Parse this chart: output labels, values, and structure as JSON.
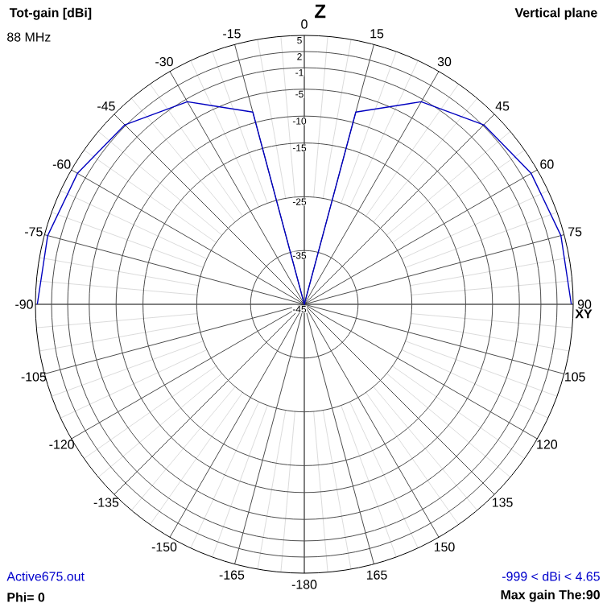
{
  "chart_data": {
    "type": "radar",
    "title": "Tot-gain [dBi]",
    "subtitle": "Vertical plane",
    "categories": [
      "0",
      "15",
      "30",
      "45",
      "60",
      "75",
      "90",
      "105",
      "120",
      "135",
      "150",
      "165",
      "-180",
      "-165",
      "-150",
      "-135",
      "-120",
      "-105",
      "-90",
      "-75",
      "-60",
      "-45",
      "-30",
      "-15"
    ],
    "series": [
      {
        "color": "#0000c0",
        "values": [
          -45,
          -8,
          -1.5,
          2.2,
          3.7,
          4.4,
          4.65,
          null,
          null,
          null,
          null,
          null,
          null,
          null,
          null,
          null,
          null,
          null,
          4.65,
          4.4,
          3.7,
          2.2,
          -1.5,
          -8
        ]
      }
    ],
    "ylim": [
      -45,
      5
    ],
    "yticks": [
      5,
      2,
      -1,
      -5,
      -10,
      -15,
      -25,
      -35,
      -45
    ],
    "grid": true,
    "annotations": [
      "88 MHz",
      "Z",
      "XY",
      "Active675.out",
      "Phi= 0",
      "-999 < dBi < 4.65",
      "Max gain The:90"
    ]
  }
}
